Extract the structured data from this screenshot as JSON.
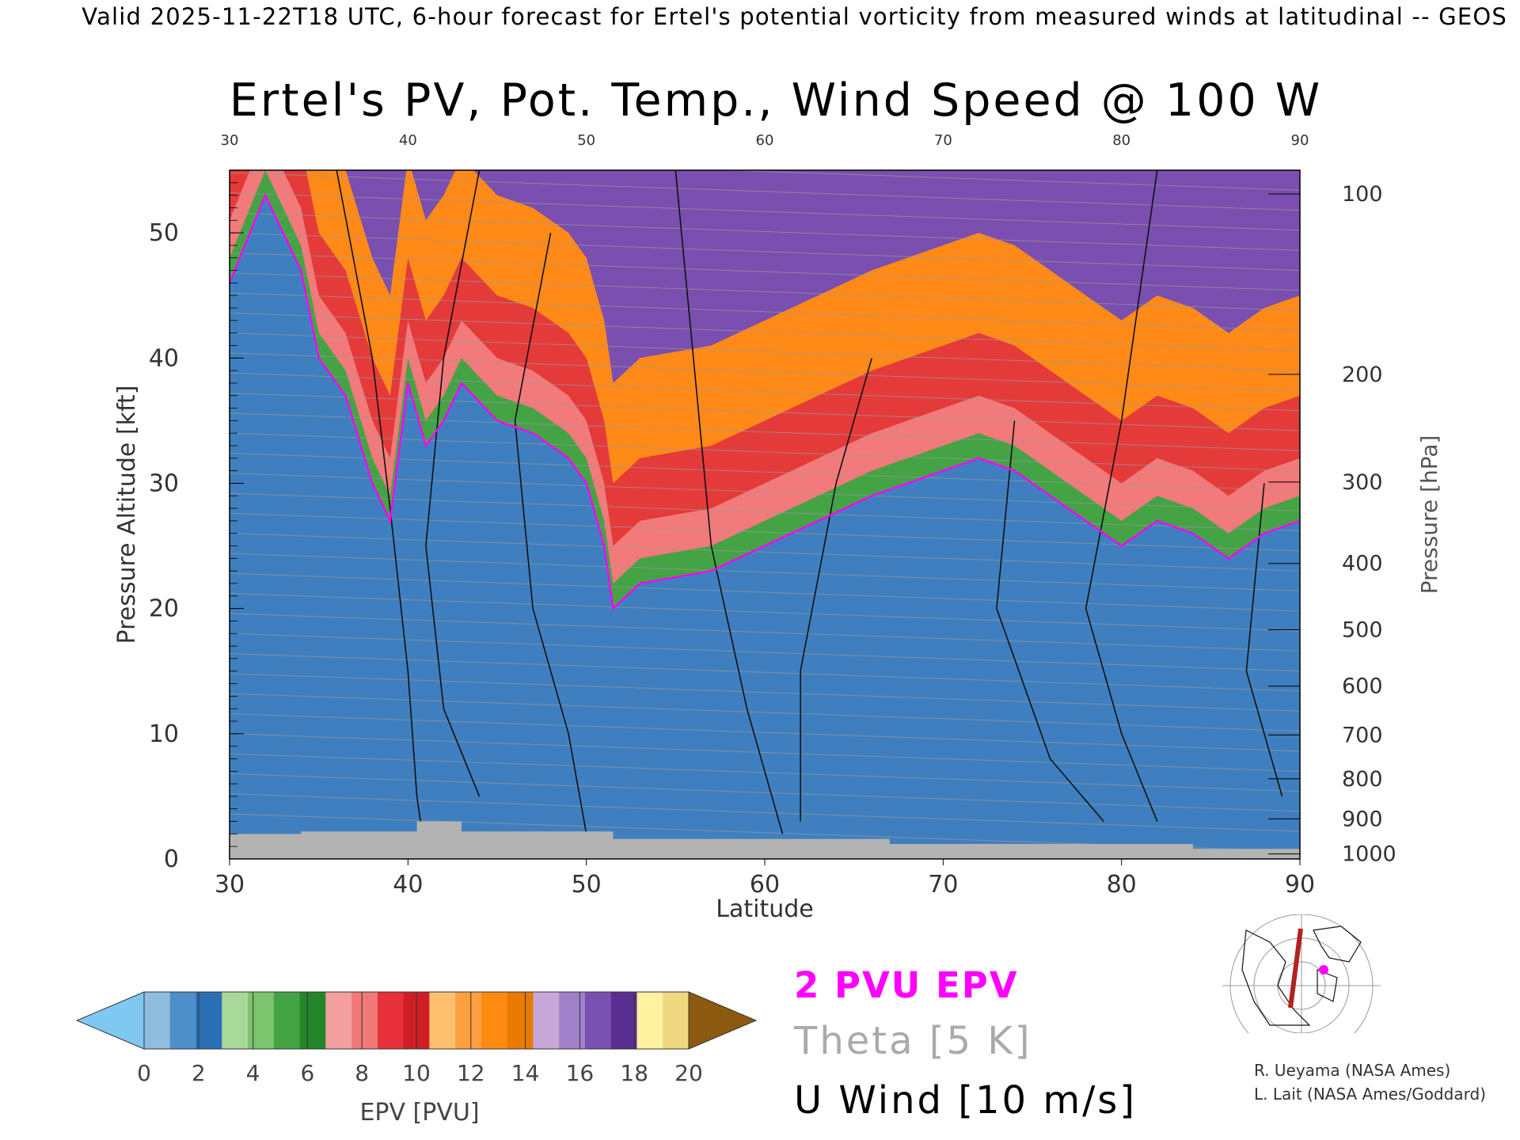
{
  "header": "Valid 2025-11-22T18 UTC, 6-hour forecast for Ertel's potential vorticity from measured winds at latitudinal -- GEOS",
  "chart_data": {
    "type": "heatmap",
    "title": "Ertel's PV, Pot. Temp., Wind Speed @ 100 W",
    "xlabel": "Latitude",
    "ylabel": "Pressure Altitude [kft]",
    "ylabel_right": "Pressure [hPa]",
    "xlim": [
      30,
      90
    ],
    "ylim": [
      0,
      55
    ],
    "x_ticks": [
      30,
      40,
      50,
      60,
      70,
      80,
      90
    ],
    "y_ticks": [
      0,
      10,
      20,
      30,
      40,
      50
    ],
    "pressure_ticks": [
      {
        "hpa": 100,
        "kft": 53.1
      },
      {
        "hpa": 200,
        "kft": 38.7
      },
      {
        "hpa": 300,
        "kft": 30.1
      },
      {
        "hpa": 400,
        "kft": 23.6
      },
      {
        "hpa": 500,
        "kft": 18.3
      },
      {
        "hpa": 600,
        "kft": 13.8
      },
      {
        "hpa": 700,
        "kft": 9.9
      },
      {
        "hpa": 800,
        "kft": 6.4
      },
      {
        "hpa": 900,
        "kft": 3.2
      },
      {
        "hpa": 1000,
        "kft": 0.4
      }
    ],
    "pv2_tropopause_kft": [
      {
        "lat": 30,
        "kft": 46
      },
      {
        "lat": 32,
        "kft": 53
      },
      {
        "lat": 34,
        "kft": 47
      },
      {
        "lat": 35,
        "kft": 40
      },
      {
        "lat": 36.5,
        "kft": 37
      },
      {
        "lat": 38,
        "kft": 30
      },
      {
        "lat": 39,
        "kft": 27
      },
      {
        "lat": 40,
        "kft": 38
      },
      {
        "lat": 41,
        "kft": 33
      },
      {
        "lat": 42,
        "kft": 35
      },
      {
        "lat": 43,
        "kft": 38
      },
      {
        "lat": 45,
        "kft": 35
      },
      {
        "lat": 47,
        "kft": 34
      },
      {
        "lat": 49,
        "kft": 32
      },
      {
        "lat": 50,
        "kft": 30
      },
      {
        "lat": 51,
        "kft": 25
      },
      {
        "lat": 51.5,
        "kft": 20
      },
      {
        "lat": 53,
        "kft": 22
      },
      {
        "lat": 55,
        "kft": 22.5
      },
      {
        "lat": 57,
        "kft": 23
      },
      {
        "lat": 60,
        "kft": 25
      },
      {
        "lat": 63,
        "kft": 27
      },
      {
        "lat": 66,
        "kft": 29
      },
      {
        "lat": 70,
        "kft": 31
      },
      {
        "lat": 72,
        "kft": 32
      },
      {
        "lat": 74,
        "kft": 31
      },
      {
        "lat": 76,
        "kft": 29
      },
      {
        "lat": 78,
        "kft": 27
      },
      {
        "lat": 80,
        "kft": 25
      },
      {
        "lat": 82,
        "kft": 27
      },
      {
        "lat": 84,
        "kft": 26
      },
      {
        "lat": 86,
        "kft": 24
      },
      {
        "lat": 88,
        "kft": 26
      },
      {
        "lat": 90,
        "kft": 27
      }
    ],
    "bands_kft_above_tropopause": [
      2,
      5,
      10,
      18,
      26
    ],
    "u_wind_contour_label": "10",
    "theta_contour_interval_K": 5,
    "colorbar": {
      "label": "EPV [PVU]",
      "ticks": [
        0,
        2,
        4,
        6,
        8,
        10,
        12,
        14,
        16,
        18,
        20
      ],
      "colors": [
        "#7fc8f2",
        "#8fbde0",
        "#4d8fc8",
        "#2a6fb4",
        "#a8d89a",
        "#7cc46e",
        "#44a444",
        "#23862a",
        "#f4a0a0",
        "#f07a78",
        "#e8303a",
        "#d01e26",
        "#ffc070",
        "#ffa040",
        "#ff8a10",
        "#e87a00",
        "#c8a8d8",
        "#a080c8",
        "#7850b0",
        "#5a2e90",
        "#fff2a0",
        "#f0d880",
        "#8b5a10"
      ],
      "under_color": "#7fc8f2",
      "over_color": "#8b5a10"
    },
    "terrain_color": "#b3b3b3",
    "tropopause_color": "#ff00ff"
  },
  "legend": {
    "pv": "2 PVU EPV",
    "theta": "Theta [5 K]",
    "uwind": "U Wind [10 m/s]"
  },
  "credits": {
    "line1": "R. Ueyama (NASA Ames)",
    "line2": "L. Lait (NASA Ames/Goddard)"
  }
}
